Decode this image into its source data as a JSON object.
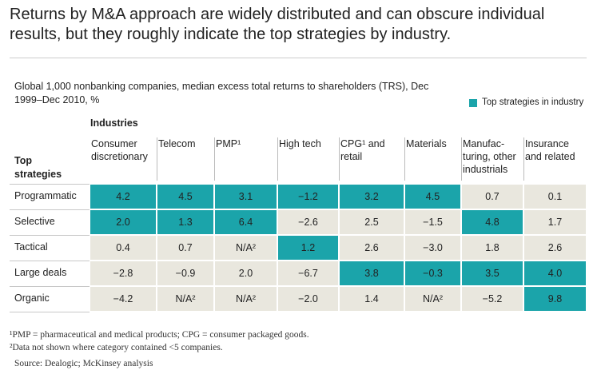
{
  "header": {
    "title": "Returns by M&A approach are widely distributed and can obscure individual results, but they roughly indicate the top strategies by industry.",
    "subtitle": "Global 1,000 nonbanking companies, median excess total returns to shareholders (TRS), Dec 1999–Dec 2010, %",
    "legend": "Top strategies in industry"
  },
  "table": {
    "column_group": "Industries",
    "row_group": "Top strategies",
    "columns": [
      "Consumer discretionary",
      "Telecom",
      "PMP¹",
      "High tech",
      "CPG¹ and retail",
      "Materials",
      "Manufac-\nturing, other\nindustrials",
      "Insurance and related"
    ],
    "highlight_color": "#1ba4aa",
    "cell_color": "#e9e7de",
    "rows": [
      {
        "label": "Programmatic",
        "values": [
          "4.2",
          "4.5",
          "3.1",
          "−1.2",
          "3.2",
          "4.5",
          "0.7",
          "0.1"
        ],
        "top": [
          true,
          true,
          true,
          true,
          true,
          true,
          false,
          false
        ]
      },
      {
        "label": "Selective",
        "values": [
          "2.0",
          "1.3",
          "6.4",
          "−2.6",
          "2.5",
          "−1.5",
          "4.8",
          "1.7"
        ],
        "top": [
          true,
          true,
          true,
          false,
          false,
          false,
          true,
          false
        ]
      },
      {
        "label": "Tactical",
        "values": [
          "0.4",
          "0.7",
          "N/A²",
          "1.2",
          "2.6",
          "−3.0",
          "1.8",
          "2.6"
        ],
        "top": [
          false,
          false,
          false,
          true,
          false,
          false,
          false,
          false
        ]
      },
      {
        "label": "Large deals",
        "values": [
          "−2.8",
          "−0.9",
          "2.0",
          "−6.7",
          "3.8",
          "−0.3",
          "3.5",
          "4.0"
        ],
        "top": [
          false,
          false,
          false,
          false,
          true,
          true,
          true,
          true
        ]
      },
      {
        "label": "Organic",
        "values": [
          "−4.2",
          "N/A²",
          "N/A²",
          "−2.0",
          "1.4",
          "N/A²",
          "−5.2",
          "9.8"
        ],
        "top": [
          false,
          false,
          false,
          false,
          false,
          false,
          false,
          true
        ]
      }
    ]
  },
  "footnotes": [
    "¹PMP = pharmaceutical and medical products; CPG = consumer packaged goods.",
    "²Data not shown where category contained <5 companies."
  ],
  "source": "Source: Dealogic; McKinsey analysis"
}
